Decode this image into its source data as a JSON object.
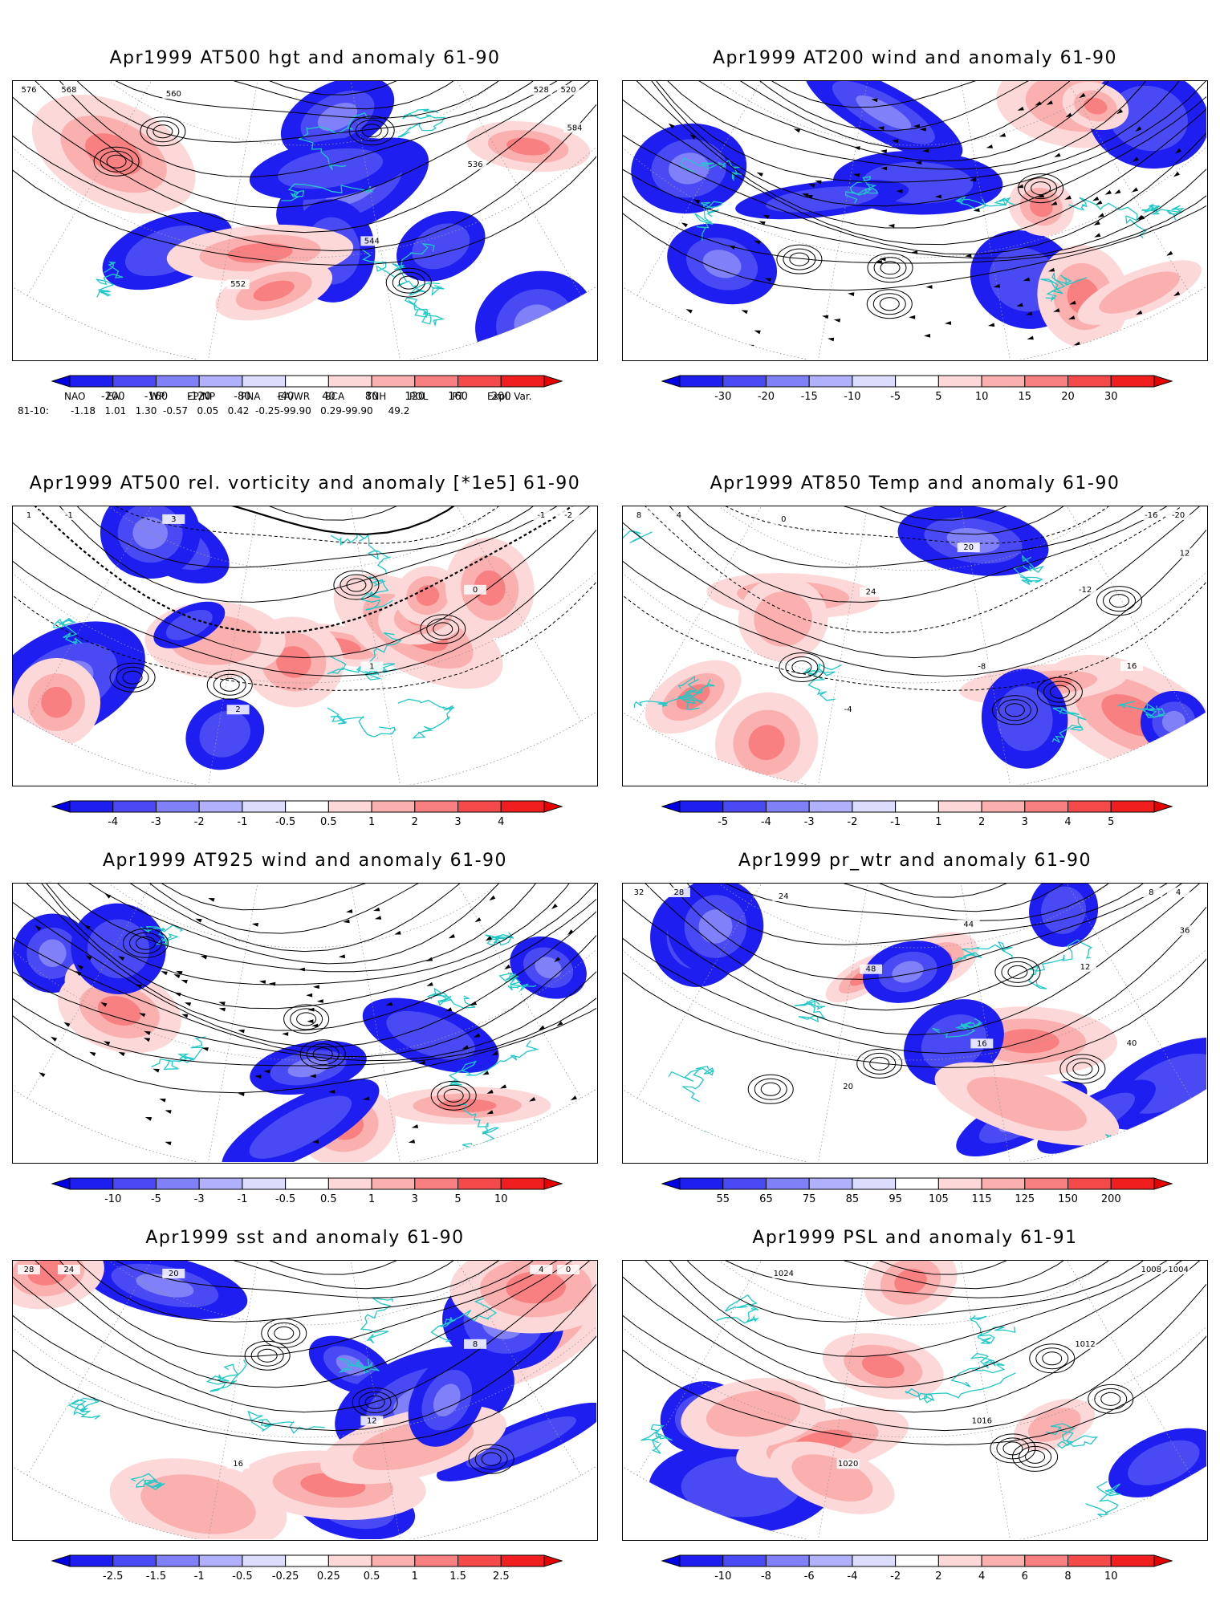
{
  "panels": [
    {
      "id": "p1",
      "title": "Apr1999 AT500 hgt and anomaly 61-90",
      "field": "height",
      "colorbar_labels": [
        "-200",
        "-160",
        "-120",
        "-80",
        "-40",
        "40",
        "80",
        "120",
        "160",
        "200"
      ],
      "contour_labels": [
        "520",
        "528",
        "536",
        "544",
        "552",
        "560",
        "568",
        "576",
        "584"
      ]
    },
    {
      "id": "p2",
      "title": "Apr1999 AT200 wind and anomaly 61-90",
      "field": "wind",
      "colorbar_labels": [
        "-30",
        "-20",
        "-15",
        "-10",
        "-5",
        "5",
        "10",
        "15",
        "20",
        "30"
      ],
      "contour_labels": []
    },
    {
      "id": "p3",
      "title": "Apr1999 AT500 rel. vorticity and anomaly [*1e5] 61-90",
      "field": "vorticity",
      "colorbar_labels": [
        "-4",
        "-3",
        "-2",
        "-1",
        "-0.5",
        "0.5",
        "1",
        "2",
        "3",
        "4"
      ],
      "contour_labels": [
        "-2",
        "-1",
        "0",
        "1",
        "2",
        "3",
        "-1",
        "1"
      ]
    },
    {
      "id": "p4",
      "title": "Apr1999 AT850 Temp and anomaly 61-90",
      "field": "temp",
      "colorbar_labels": [
        "-5",
        "-4",
        "-3",
        "-2",
        "-1",
        "1",
        "2",
        "3",
        "4",
        "5"
      ],
      "contour_labels": [
        "-20",
        "-16",
        "-12",
        "-8",
        "-4",
        "0",
        "4",
        "8",
        "12",
        "16",
        "20",
        "24"
      ]
    },
    {
      "id": "p5",
      "title": "Apr1999 AT925 wind and anomaly 61-90",
      "field": "wind",
      "colorbar_labels": [
        "-10",
        "-5",
        "-3",
        "-1",
        "-0.5",
        "0.5",
        "1",
        "3",
        "5",
        "10"
      ],
      "contour_labels": []
    },
    {
      "id": "p6",
      "title": "Apr1999 pr_wtr and anomaly 61-90",
      "field": "prwtr",
      "colorbar_labels": [
        "55",
        "65",
        "75",
        "85",
        "95",
        "105",
        "115",
        "125",
        "150",
        "200"
      ],
      "contour_labels": [
        "4",
        "8",
        "12",
        "16",
        "20",
        "24",
        "28",
        "32",
        "36",
        "40",
        "44",
        "48"
      ]
    },
    {
      "id": "p7",
      "title": "Apr1999 sst and anomaly 61-90",
      "field": "sst",
      "colorbar_labels": [
        "-2.5",
        "-1.5",
        "-1",
        "-0.5",
        "-0.25",
        "0.25",
        "0.5",
        "1",
        "1.5",
        "2.5"
      ],
      "contour_labels": [
        "0",
        "4",
        "8",
        "12",
        "16",
        "20",
        "24",
        "28"
      ]
    },
    {
      "id": "p8",
      "title": "Apr1999 PSL and anomaly 61-91",
      "field": "psl",
      "colorbar_labels": [
        "-10",
        "-8",
        "-6",
        "-4",
        "-2",
        "2",
        "4",
        "6",
        "8",
        "10"
      ],
      "contour_labels": [
        "1004",
        "1008",
        "1012",
        "1016",
        "1020",
        "1024"
      ]
    }
  ],
  "teleconnections": {
    "headers": [
      "NAO",
      "EA",
      "WP",
      "EP/NP",
      "PNA",
      "EA/WR",
      "SCA",
      "TNH",
      "POL",
      "PT",
      "Expl. Var."
    ],
    "row_label": "81-10:",
    "values_text": "-1.18   1.01   1.30  -0.57   0.05   0.42  -0.25-99.90   0.29-99.90     49.2"
  },
  "colors": {
    "negative_ramp": [
      "#1e1ef0",
      "#4a4af5",
      "#8080f8",
      "#b0b0fb",
      "#dcdcfd"
    ],
    "positive_ramp": [
      "#fdd8d8",
      "#fbb0b0",
      "#f88080",
      "#f54a4a",
      "#f01e1e"
    ],
    "coastline": "#20c8c8",
    "contour": "#000000"
  }
}
